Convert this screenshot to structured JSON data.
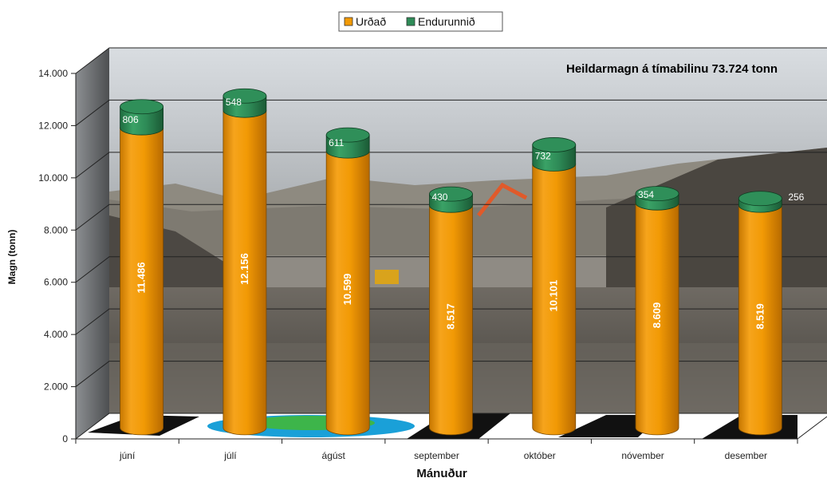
{
  "chart_data": {
    "type": "bar",
    "subtype": "stacked-3d-cylinder",
    "categories": [
      "júní",
      "júlí",
      "ágúst",
      "september",
      "október",
      "nóvember",
      "desember"
    ],
    "series": [
      {
        "name": "Urðað",
        "color": "#f29a05",
        "values": [
          11486,
          12156,
          10599,
          8517,
          10101,
          8609,
          8519
        ]
      },
      {
        "name": "Endurunnið",
        "color": "#2e8b57",
        "values": [
          806,
          548,
          611,
          430,
          732,
          354,
          256
        ]
      }
    ],
    "value_labels": {
      "Urðað": [
        "11.486",
        "12.156",
        "10.599",
        "8.517",
        "10.101",
        "8.609",
        "8.519"
      ],
      "Endurunnið": [
        "806",
        "548",
        "611",
        "430",
        "732",
        "354",
        "256"
      ]
    },
    "xlabel": "Mánuður",
    "ylabel": "Magn (tonn)",
    "ylim": [
      0,
      14000
    ],
    "yticks": [
      0,
      2000,
      4000,
      6000,
      8000,
      10000,
      12000,
      14000
    ],
    "ytick_labels": [
      "0",
      "2.000",
      "4.000",
      "6.000",
      "8.000",
      "10.000",
      "12.000",
      "14.000"
    ],
    "annotation": "Heildarmagn á tímabilinu 73.724 tonn",
    "legend_position": "top-center",
    "grid": true,
    "background": "landfill photograph"
  }
}
